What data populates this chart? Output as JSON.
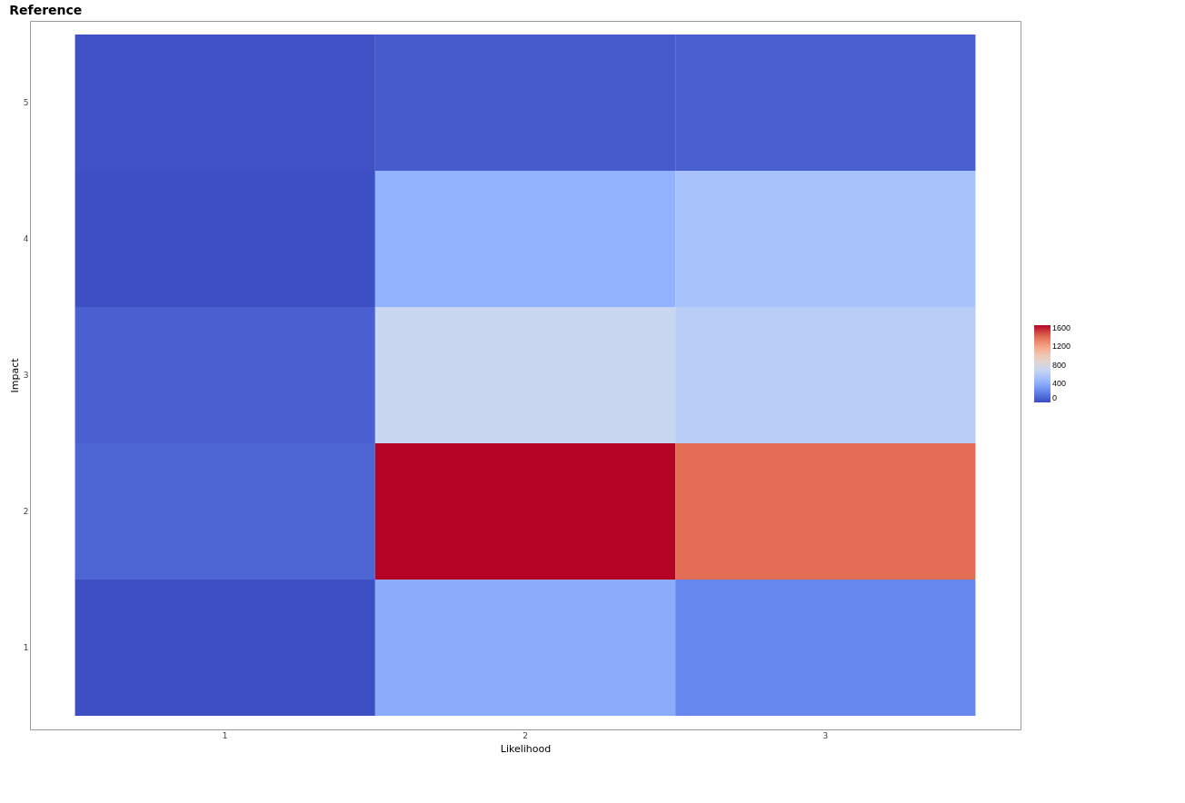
{
  "chart_data": {
    "type": "heatmap",
    "title": "Reference",
    "xlabel": "Likelihood",
    "ylabel": "Impact",
    "categories": [
      "1",
      "2",
      "3"
    ],
    "y_categories": [
      "5",
      "4",
      "3",
      "2",
      "1"
    ],
    "cells": [
      [
        20,
        60,
        80
      ],
      [
        10,
        430,
        540
      ],
      [
        80,
        700,
        620
      ],
      [
        100,
        1650,
        1400
      ],
      [
        10,
        400,
        230
      ]
    ],
    "clim": [
      0,
      1650
    ],
    "cticks": [
      0,
      400,
      800,
      1200,
      1600
    ]
  }
}
